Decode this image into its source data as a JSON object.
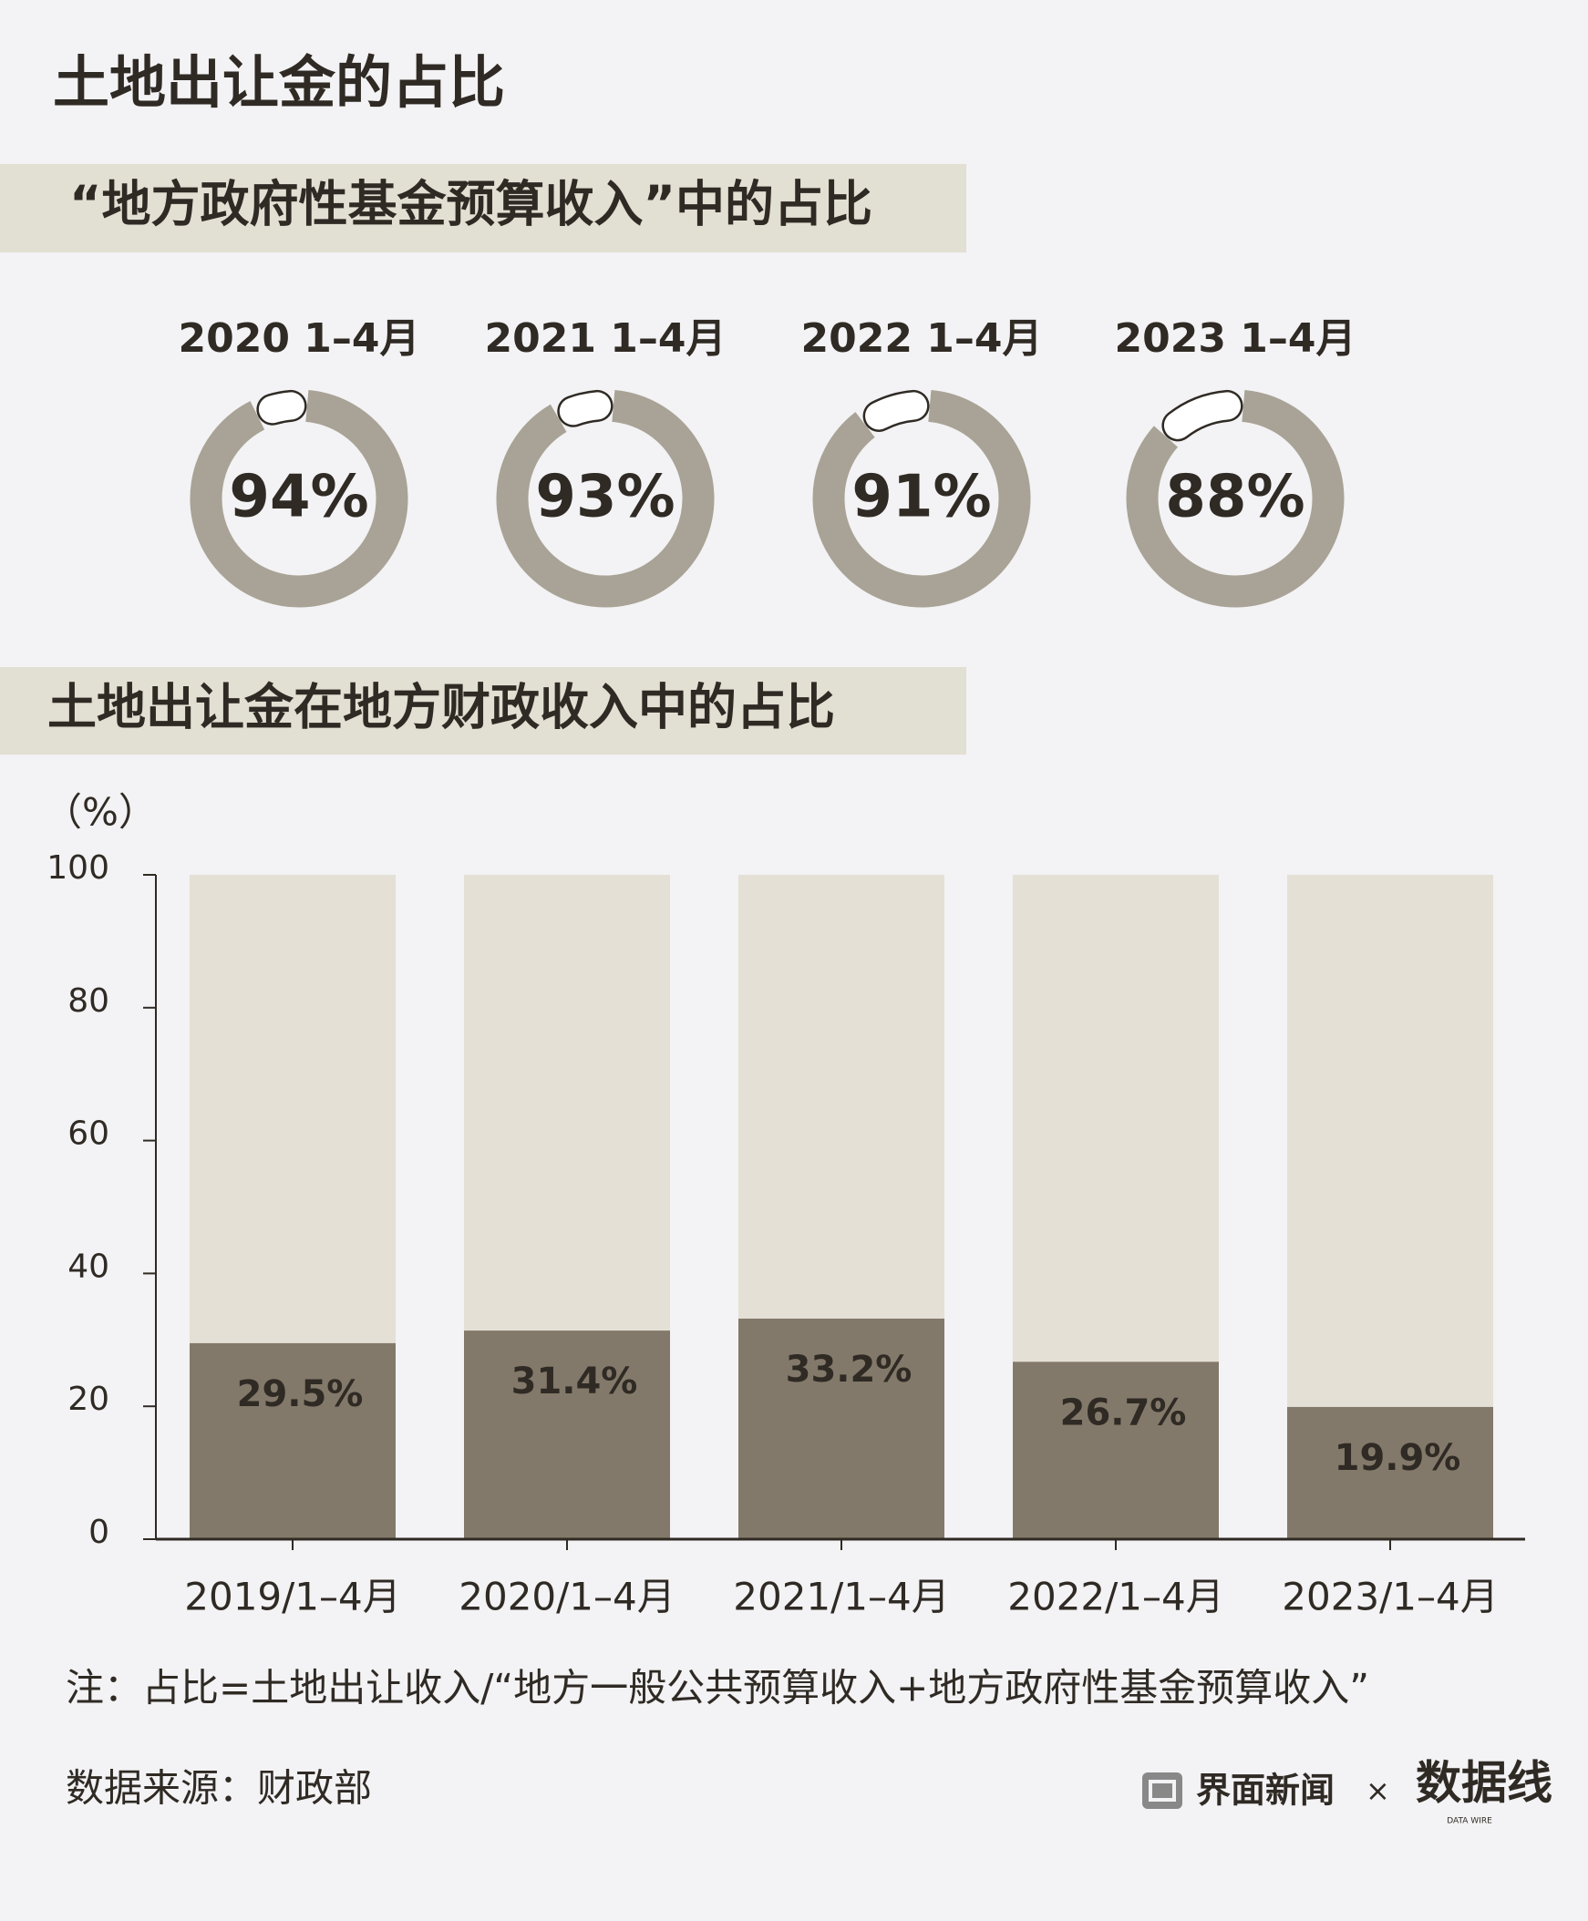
{
  "title": "土地出让金的占比",
  "chart_data": [
    {
      "type": "donut",
      "title": "“地方政府性基金预算收入”中的占比",
      "categories": [
        "2020 1–4月",
        "2021 1–4月",
        "2022 1–4月",
        "2023 1–4月"
      ],
      "values": [
        94,
        93,
        91,
        88
      ],
      "value_labels": [
        "94%",
        "93%",
        "91%",
        "88%"
      ],
      "color": "#a8a396"
    },
    {
      "type": "bar",
      "title": "土地出让金在地方财政收入中的占比",
      "y_label": "（%）",
      "categories": [
        "2019/1–4月",
        "2020/1–4月",
        "2021/1–4月",
        "2022/1–4月",
        "2023/1–4月"
      ],
      "values": [
        29.5,
        31.4,
        33.2,
        26.7,
        19.9
      ],
      "value_labels": [
        "29.5%",
        "31.4%",
        "33.2%",
        "26.7%",
        "19.9%"
      ],
      "color": "#83796a",
      "ylim": [
        0,
        100
      ],
      "yticks": [
        0,
        20,
        40,
        60,
        80,
        100
      ]
    }
  ],
  "note": "注：占比=土地出让收入/“地方一般公共预算收入+地方政府性基金预算收入”",
  "source": "数据来源：财政部",
  "logo": {
    "brand": "界面新闻",
    "separator": "×",
    "partner": "数据线",
    "partner_sub": "DATA WIRE"
  }
}
